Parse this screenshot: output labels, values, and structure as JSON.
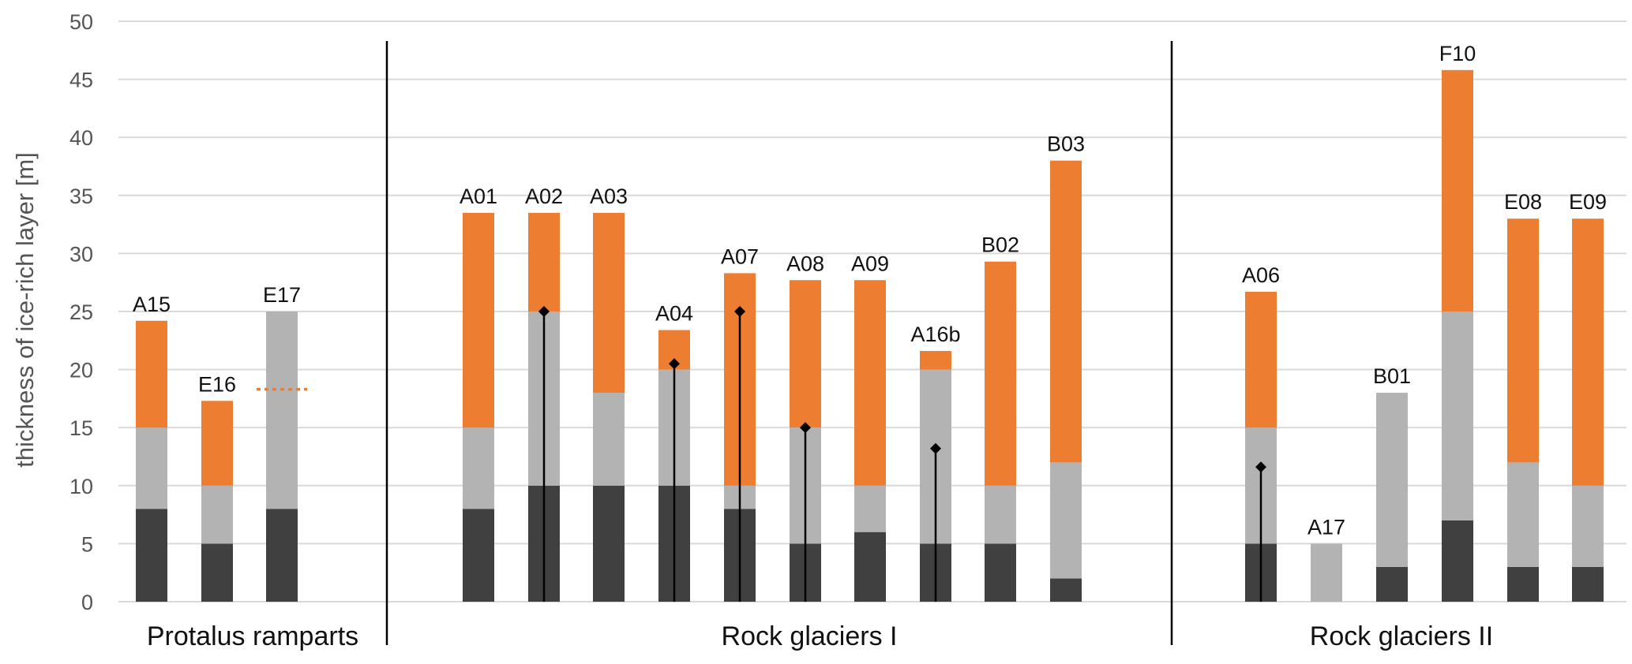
{
  "chart_data": {
    "type": "bar",
    "stacked": true,
    "ylabel": "thickness of ice-rich layer [m]",
    "ylim": [
      0,
      50
    ],
    "yticks": [
      0,
      5,
      10,
      15,
      20,
      25,
      30,
      35,
      40,
      45,
      50
    ],
    "grid": true,
    "legend": "none",
    "series_colors": {
      "dark": "#404040",
      "grey": "#b3b3b3",
      "orange": "#ed7d31",
      "marker": "#000000"
    },
    "groups": [
      {
        "label": "Protalus ramparts",
        "bars": [
          {
            "label": "A15",
            "segments": [
              8,
              7,
              9.2
            ],
            "marker": null
          },
          {
            "label": "E16",
            "segments": [
              5,
              5,
              7.3
            ],
            "marker": null
          },
          {
            "label": "E17",
            "segments": [
              8,
              17,
              0
            ],
            "marker": null,
            "dotted_line": 18.3
          }
        ]
      },
      {
        "label": "Rock glaciers I",
        "bars": [
          {
            "label": "A01",
            "segments": [
              8,
              7,
              18.5
            ],
            "marker": null
          },
          {
            "label": "A02",
            "segments": [
              10,
              15,
              8.5
            ],
            "marker": 25
          },
          {
            "label": "A03",
            "segments": [
              10,
              8,
              15.5
            ],
            "marker": null
          },
          {
            "label": "A04",
            "segments": [
              10,
              10,
              3.4
            ],
            "marker": 20.5
          },
          {
            "label": "A07",
            "segments": [
              8,
              2,
              18.3
            ],
            "marker": 25
          },
          {
            "label": "A08",
            "segments": [
              5,
              10,
              12.7
            ],
            "marker": 15
          },
          {
            "label": "A09",
            "segments": [
              6,
              4,
              17.7
            ],
            "marker": null
          },
          {
            "label": "A16b",
            "segments": [
              5,
              15,
              1.6
            ],
            "marker": 13.2
          },
          {
            "label": "B02",
            "segments": [
              5,
              5,
              19.3
            ],
            "marker": null
          },
          {
            "label": "B03",
            "segments": [
              2,
              10,
              26
            ],
            "marker": null
          }
        ]
      },
      {
        "label": "Rock glaciers II",
        "bars": [
          {
            "label": "A06",
            "segments": [
              5,
              10,
              11.7
            ],
            "marker": 11.6
          },
          {
            "label": "A17",
            "segments": [
              0,
              5,
              0
            ],
            "marker": null
          },
          {
            "label": "B01",
            "segments": [
              3,
              15,
              0
            ],
            "marker": null
          },
          {
            "label": "F10",
            "segments": [
              7,
              18,
              20.8
            ],
            "marker": null
          },
          {
            "label": "E08",
            "segments": [
              3,
              9,
              21
            ],
            "marker": null
          },
          {
            "label": "E09",
            "segments": [
              3,
              7,
              23
            ],
            "marker": null
          }
        ]
      }
    ]
  }
}
